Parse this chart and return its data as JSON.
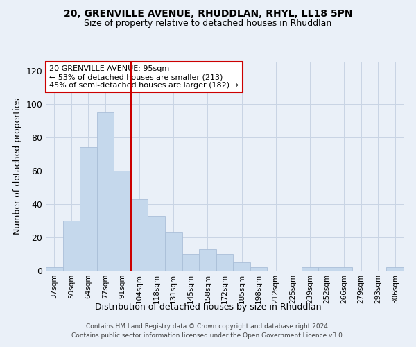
{
  "title1": "20, GRENVILLE AVENUE, RHUDDLAN, RHYL, LL18 5PN",
  "title2": "Size of property relative to detached houses in Rhuddlan",
  "xlabel": "Distribution of detached houses by size in Rhuddlan",
  "ylabel": "Number of detached properties",
  "categories": [
    "37sqm",
    "50sqm",
    "64sqm",
    "77sqm",
    "91sqm",
    "104sqm",
    "118sqm",
    "131sqm",
    "145sqm",
    "158sqm",
    "172sqm",
    "185sqm",
    "198sqm",
    "212sqm",
    "225sqm",
    "239sqm",
    "252sqm",
    "266sqm",
    "279sqm",
    "293sqm",
    "306sqm"
  ],
  "values": [
    2,
    30,
    74,
    95,
    60,
    43,
    33,
    23,
    10,
    13,
    10,
    5,
    2,
    0,
    0,
    2,
    2,
    2,
    0,
    0,
    2
  ],
  "bar_color": "#c5d8ec",
  "bar_edge_color": "#aabfd8",
  "red_line_x": 4.5,
  "annotation_text": "20 GRENVILLE AVENUE: 95sqm\n← 53% of detached houses are smaller (213)\n45% of semi-detached houses are larger (182) →",
  "annotation_box_color": "#ffffff",
  "annotation_box_edge_color": "#cc0000",
  "red_line_color": "#cc0000",
  "ylim": [
    0,
    125
  ],
  "yticks": [
    0,
    20,
    40,
    60,
    80,
    100,
    120
  ],
  "grid_color": "#c8d4e4",
  "bg_color": "#eaf0f8",
  "footer": "Contains HM Land Registry data © Crown copyright and database right 2024.\nContains public sector information licensed under the Open Government Licence v3.0."
}
